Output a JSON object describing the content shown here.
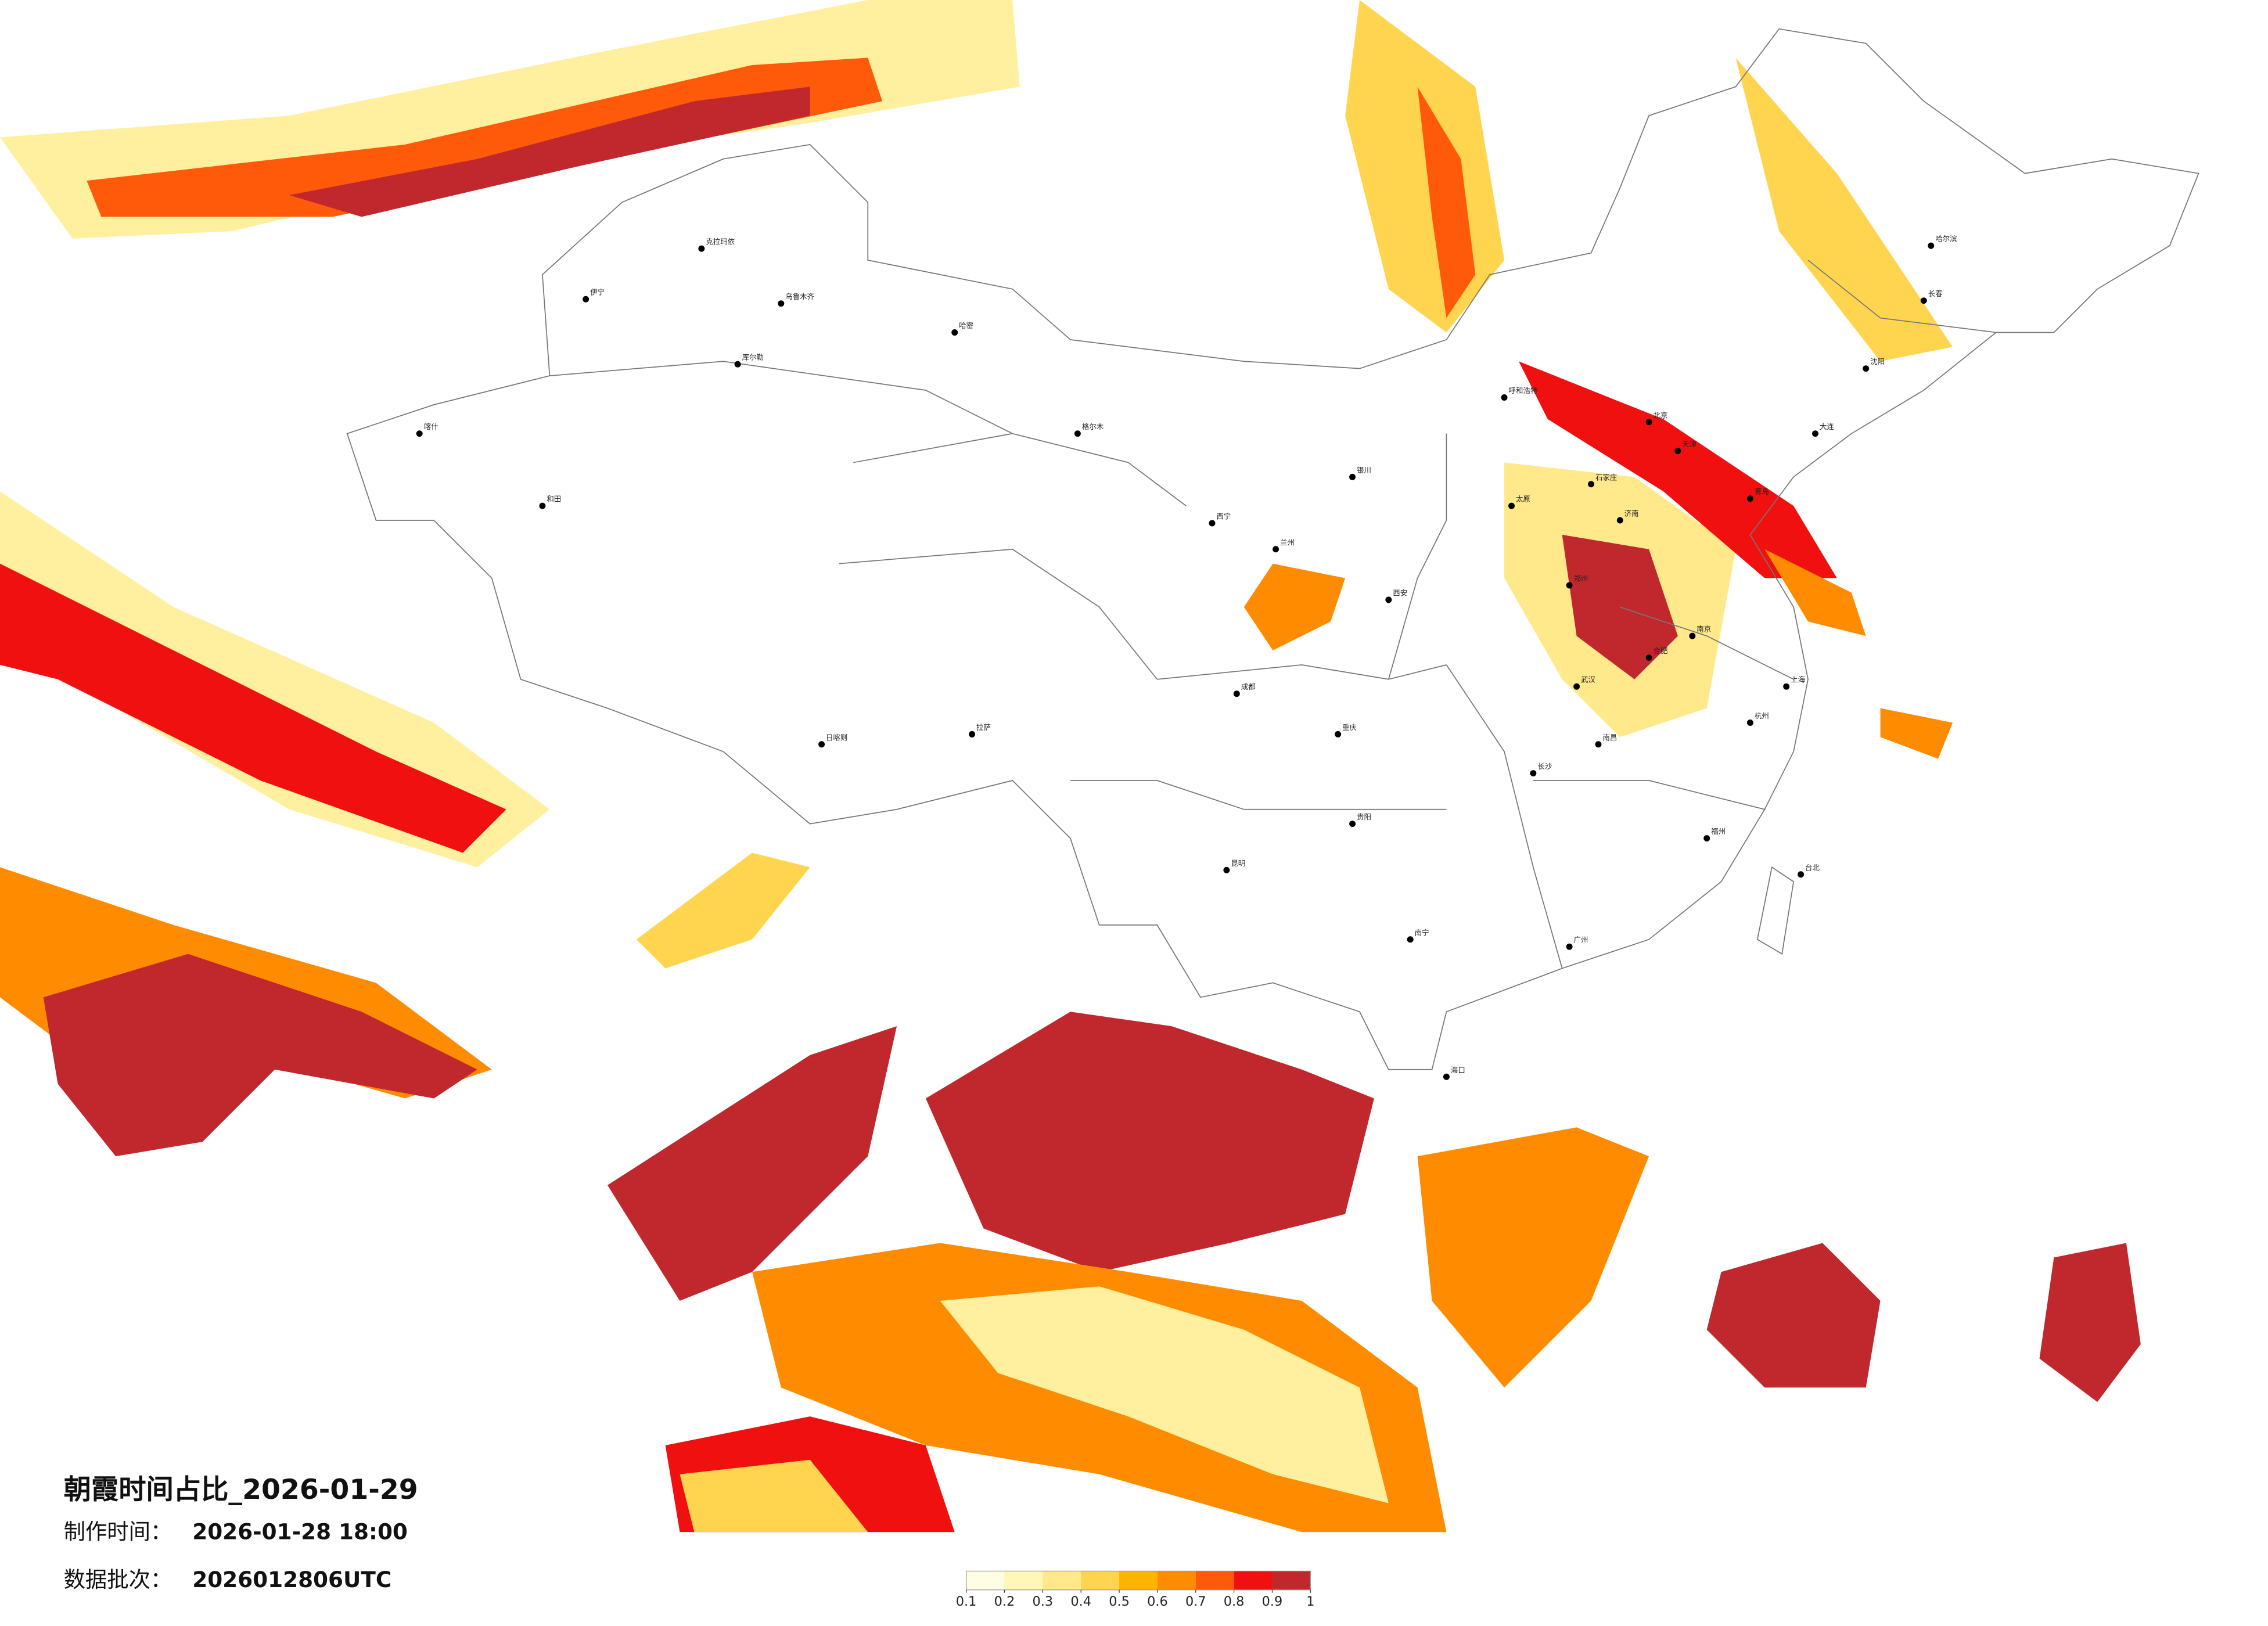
{
  "title": "朝霞时间占比_2026-01-29",
  "made_label": "制作时间：",
  "made_time": "2026-01-28 18:00",
  "batch_label": "数据批次：",
  "batch": "2026012806UTC",
  "colorbar": {
    "ticks": [
      0.1,
      0.2,
      0.3,
      0.4,
      0.5,
      0.6,
      0.7,
      0.8,
      0.9,
      1
    ],
    "colors": [
      "#fffde3",
      "#fff6b8",
      "#ffe98a",
      "#ffd54f",
      "#ffb400",
      "#ff8c00",
      "#ff5a0a",
      "#f01010",
      "#c0282d"
    ]
  },
  "cities": [
    "克拉玛依",
    "乌鲁木齐",
    "伊宁",
    "哈密",
    "喀什",
    "和田",
    "库尔勒",
    "拉萨",
    "日喀则",
    "格尔木",
    "西宁",
    "兰州",
    "银川",
    "呼和浩特",
    "北京",
    "天津",
    "石家庄",
    "太原",
    "济南",
    "郑州",
    "西安",
    "成都",
    "重庆",
    "武汉",
    "长沙",
    "南京",
    "上海",
    "杭州",
    "合肥",
    "南昌",
    "福州",
    "广州",
    "南宁",
    "贵阳",
    "昆明",
    "海口",
    "台北",
    "沈阳",
    "长春",
    "哈尔滨",
    "大连",
    "青岛"
  ]
}
